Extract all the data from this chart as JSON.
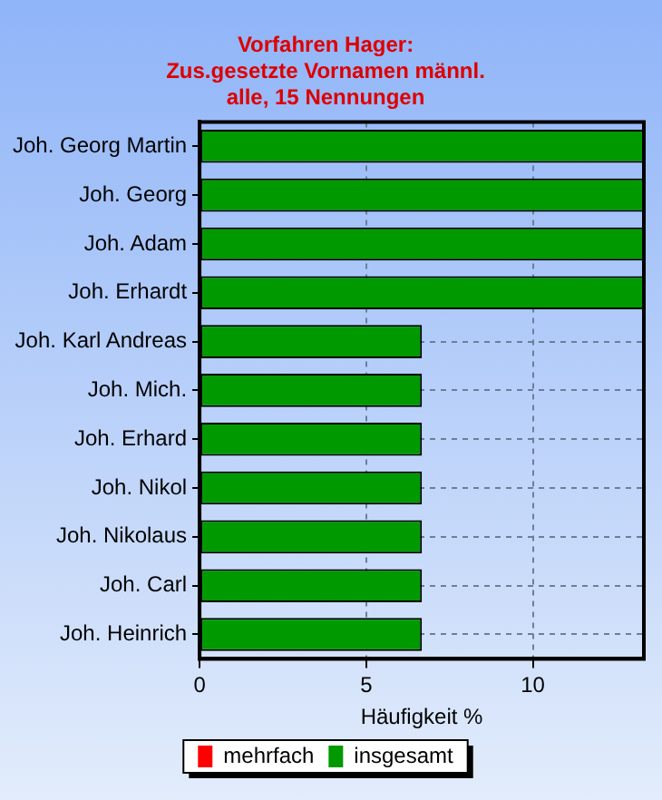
{
  "chart_data": {
    "type": "bar",
    "orientation": "horizontal",
    "title": "Vorfahren Hager:\nZus.gesetzte Vornamen männl.\nalle, 15 Nennungen",
    "xlabel": "Häufigkeit %",
    "categories": [
      "Joh. Georg Martin",
      "Joh. Georg",
      "Joh. Adam",
      "Joh. Erhardt",
      "Joh. Karl Andreas",
      "Joh. Mich.",
      "Joh. Erhard",
      "Joh. Nikol",
      "Joh. Nikolaus",
      "Joh. Carl",
      "Joh. Heinrich"
    ],
    "series": [
      {
        "name": "mehrfach",
        "color": "#ff0000",
        "values": [
          0,
          0,
          0,
          0,
          0,
          0,
          0,
          0,
          0,
          0,
          0
        ]
      },
      {
        "name": "insgesamt",
        "color": "#009900",
        "values": [
          13.33,
          13.33,
          13.33,
          13.33,
          6.67,
          6.67,
          6.67,
          6.67,
          6.67,
          6.67,
          6.67
        ]
      }
    ],
    "xlim": [
      0,
      13.33
    ],
    "xticks": [
      0,
      5,
      10
    ],
    "grid": true,
    "legend": "bottom"
  }
}
